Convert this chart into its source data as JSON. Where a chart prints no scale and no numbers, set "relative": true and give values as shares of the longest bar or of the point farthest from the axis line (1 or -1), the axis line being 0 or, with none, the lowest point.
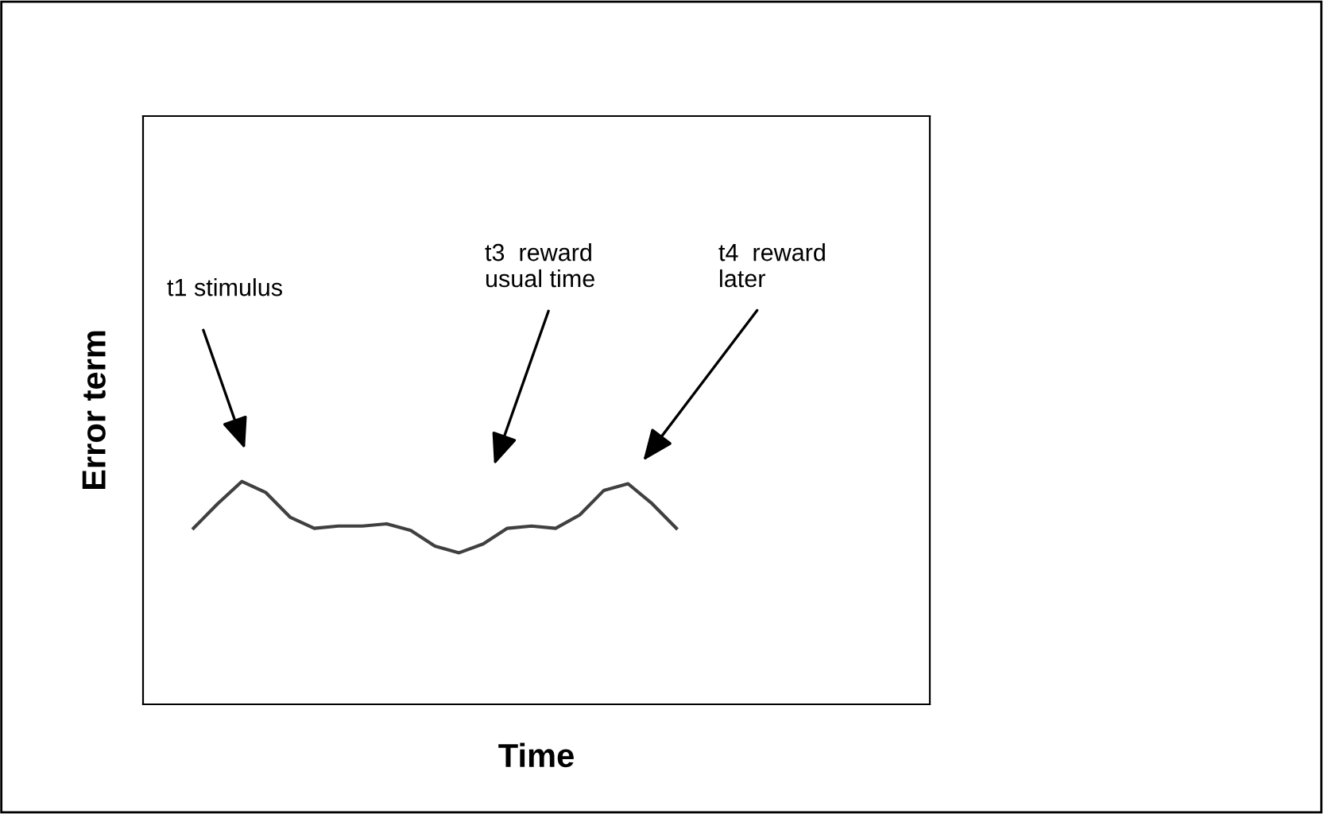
{
  "chart_data": {
    "type": "line",
    "relative": true,
    "xlabel": "Time",
    "ylabel": "Error term",
    "categories": [
      null,
      null,
      null,
      null,
      null,
      null,
      null,
      null,
      null,
      null,
      null,
      null,
      null,
      null,
      null,
      null,
      null,
      null,
      null,
      null,
      null
    ],
    "series": [
      {
        "color": "#404040",
        "values": [
          0.79,
          0.9,
          1.0,
          0.95,
          0.84,
          0.79,
          0.8,
          0.8,
          0.81,
          0.78,
          0.71,
          0.68,
          0.72,
          0.79,
          0.8,
          0.79,
          0.85,
          0.96,
          0.99,
          0.9,
          0.79
        ]
      }
    ],
    "annotations": [
      "t1 stimulus",
      "t3  reward\nusual time",
      "t4  reward\nlater"
    ],
    "grid": false,
    "legend": false,
    "marker": "none",
    "line_style": "solid"
  }
}
